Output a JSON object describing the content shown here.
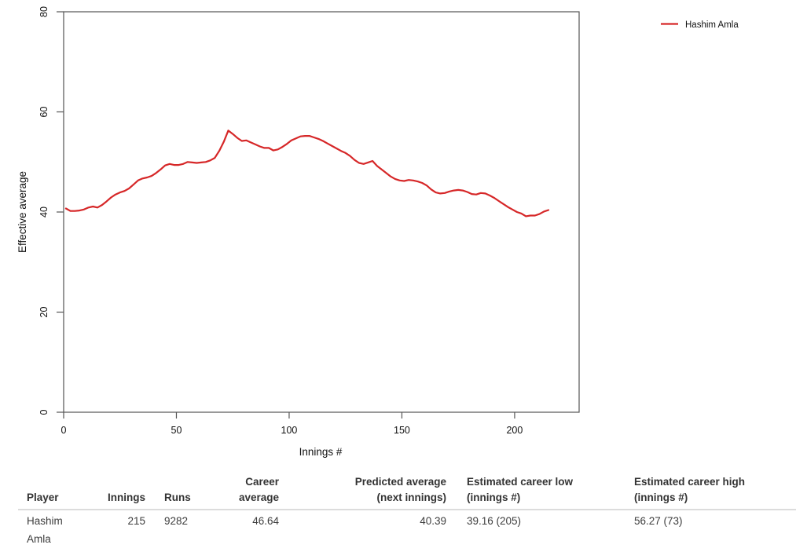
{
  "legend": {
    "label": "Hashim Amla"
  },
  "chart_data": {
    "type": "line",
    "title": "",
    "xlabel": "Innings #",
    "ylabel": "Effective average",
    "xlim": [
      0,
      228.6
    ],
    "ylim": [
      0,
      80
    ],
    "x_ticks": [
      0,
      50,
      100,
      150,
      200
    ],
    "y_ticks": [
      0,
      20,
      40,
      60,
      80
    ],
    "grid": false,
    "legend_position": "top-right-outside",
    "axis_color": "#555555",
    "series": [
      {
        "name": "Hashim Amla",
        "color": "#d62728",
        "x": [
          1,
          3,
          5,
          7,
          9,
          11,
          13,
          15,
          17,
          19,
          21,
          23,
          25,
          27,
          29,
          31,
          33,
          35,
          37,
          39,
          41,
          43,
          45,
          47,
          49,
          51,
          53,
          55,
          57,
          59,
          61,
          63,
          65,
          67,
          69,
          71,
          73,
          75,
          77,
          79,
          81,
          83,
          85,
          87,
          89,
          91,
          93,
          95,
          97,
          99,
          101,
          103,
          105,
          107,
          109,
          111,
          113,
          115,
          117,
          119,
          121,
          123,
          125,
          127,
          129,
          131,
          133,
          135,
          137,
          139,
          141,
          143,
          145,
          147,
          149,
          151,
          153,
          155,
          157,
          159,
          161,
          163,
          165,
          167,
          169,
          171,
          173,
          175,
          177,
          179,
          181,
          183,
          185,
          187,
          189,
          191,
          193,
          195,
          197,
          199,
          201,
          203,
          205,
          207,
          209,
          211,
          213,
          215
        ],
        "y": [
          40.7,
          40.2,
          40.2,
          40.3,
          40.5,
          40.9,
          41.1,
          40.9,
          41.4,
          42.1,
          42.9,
          43.5,
          43.9,
          44.2,
          44.7,
          45.5,
          46.3,
          46.7,
          46.9,
          47.2,
          47.8,
          48.5,
          49.3,
          49.6,
          49.4,
          49.4,
          49.6,
          50.0,
          49.9,
          49.8,
          49.9,
          50.0,
          50.3,
          50.8,
          52.2,
          54.0,
          56.27,
          55.6,
          54.8,
          54.2,
          54.3,
          53.9,
          53.5,
          53.1,
          52.8,
          52.8,
          52.3,
          52.5,
          53.0,
          53.6,
          54.3,
          54.7,
          55.1,
          55.2,
          55.2,
          54.9,
          54.6,
          54.2,
          53.7,
          53.2,
          52.7,
          52.2,
          51.8,
          51.2,
          50.4,
          49.8,
          49.6,
          49.9,
          50.2,
          49.2,
          48.5,
          47.8,
          47.1,
          46.6,
          46.3,
          46.2,
          46.4,
          46.3,
          46.1,
          45.8,
          45.3,
          44.5,
          43.9,
          43.7,
          43.8,
          44.1,
          44.3,
          44.4,
          44.3,
          44.0,
          43.6,
          43.5,
          43.8,
          43.7,
          43.3,
          42.8,
          42.2,
          41.6,
          41.0,
          40.5,
          40.0,
          39.7,
          39.16,
          39.3,
          39.3,
          39.6,
          40.1,
          40.39
        ]
      }
    ]
  },
  "table": {
    "columns": [
      {
        "label": "Player",
        "lines": [
          "Player"
        ],
        "align": "left"
      },
      {
        "label": "Innings",
        "lines": [
          "Innings"
        ],
        "align": "right"
      },
      {
        "label": "Runs",
        "lines": [
          "Runs"
        ],
        "align": "left"
      },
      {
        "label": "Career average",
        "lines": [
          "Career",
          "average"
        ],
        "align": "right"
      },
      {
        "label": "Predicted average (next innings)",
        "lines": [
          "Predicted average",
          "(next innings)"
        ],
        "align": "right"
      },
      {
        "label": "Estimated career low (innings #)",
        "lines": [
          "Estimated career low",
          "(innings #)"
        ],
        "align": "left"
      },
      {
        "label": "Estimated career high (innings #)",
        "lines": [
          "Estimated career high",
          "(innings #)"
        ],
        "align": "left"
      }
    ],
    "row": {
      "player": "Hashim Amla",
      "innings": "215",
      "runs": "9282",
      "career_average": "46.64",
      "predicted_average": "40.39",
      "career_low": "39.16 (205)",
      "career_high": "56.27 (73)"
    }
  }
}
